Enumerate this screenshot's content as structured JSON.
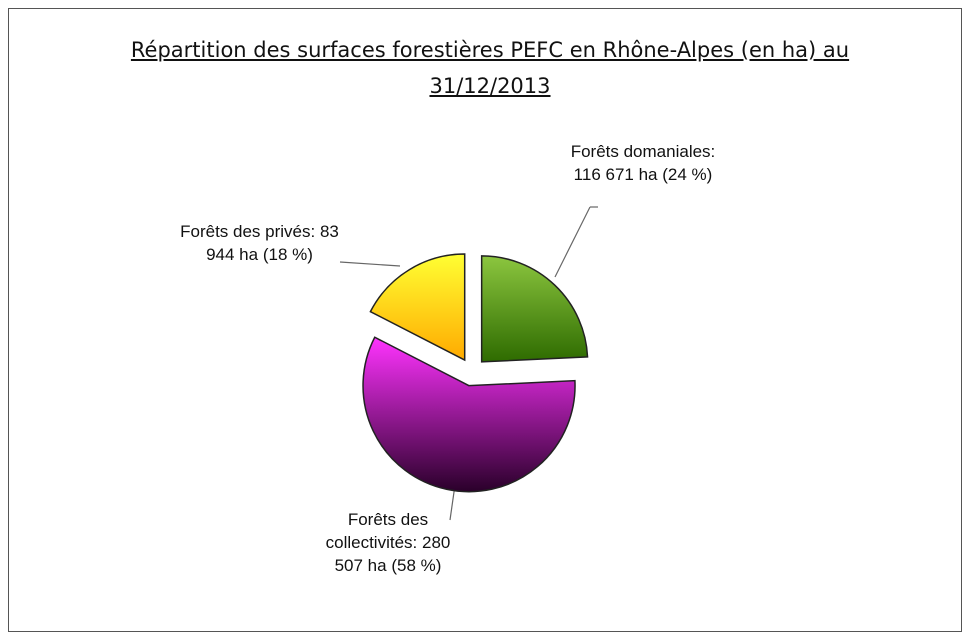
{
  "chart_data": {
    "type": "pie",
    "title": "Répartition des surfaces forestières PEFC en Rhône-Alpes (en ha) au 31/12/2013",
    "categories": [
      "Forêts domaniales:",
      "Forêts des collectivités:",
      "Forêts des privés:"
    ],
    "values": [
      116671,
      280507,
      83944
    ],
    "value_labels": [
      "116 671 ha",
      "280 507 ha",
      "83 944 ha"
    ],
    "percent_labels": [
      "(24 %)",
      "(58 %)",
      "(18 %)"
    ],
    "colors": [
      [
        "#8cc63f",
        "#2e6b00"
      ],
      [
        "#ff33ff",
        "#2a002a"
      ],
      [
        "#ffff33",
        "#ffaa00"
      ]
    ]
  }
}
